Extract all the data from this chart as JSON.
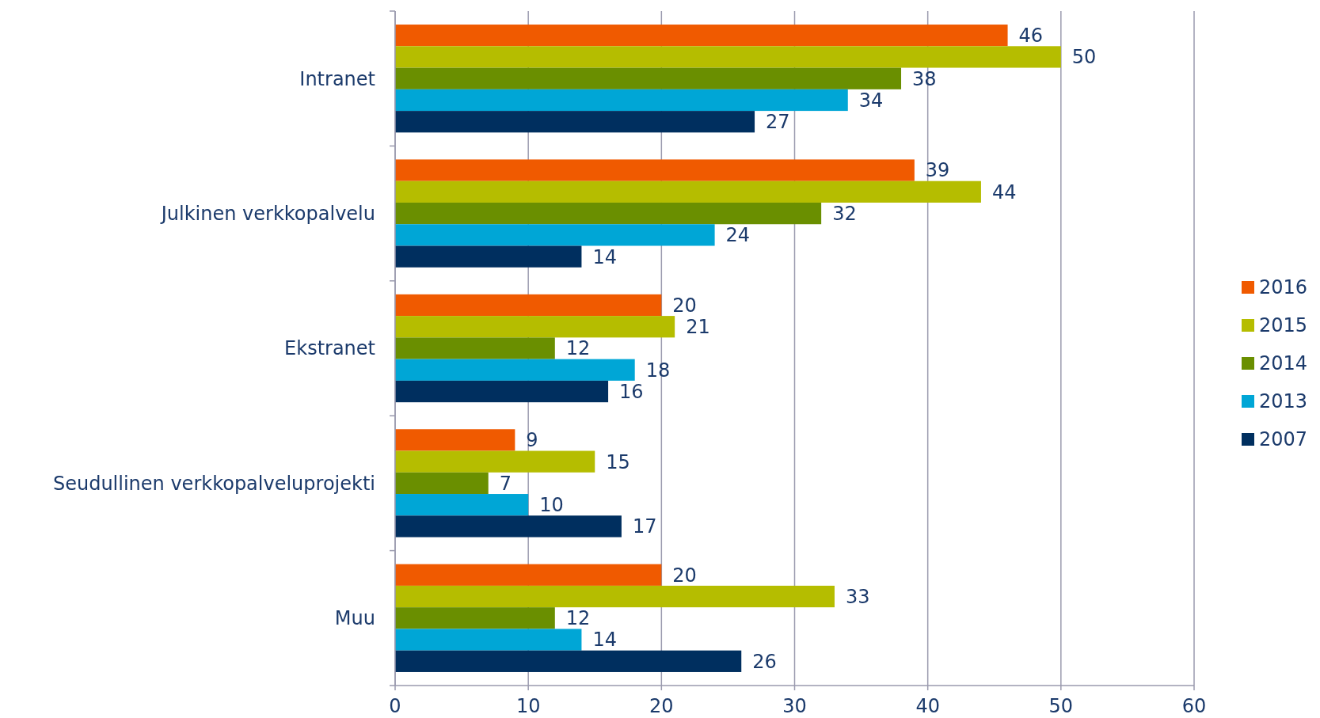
{
  "chart_data": {
    "type": "bar",
    "orientation": "horizontal",
    "categories": [
      "Intranet",
      "Julkinen verkkopalvelu",
      "Ekstranet",
      "Seudullinen verkkopalveluprojekti",
      "Muu"
    ],
    "series": [
      {
        "name": "2016",
        "color": "#f05a00",
        "values": [
          46,
          39,
          20,
          9,
          20
        ]
      },
      {
        "name": "2015",
        "color": "#b5bd00",
        "values": [
          50,
          44,
          21,
          15,
          33
        ]
      },
      {
        "name": "2014",
        "color": "#6a8f00",
        "values": [
          38,
          32,
          12,
          7,
          12
        ]
      },
      {
        "name": "2013",
        "color": "#00a6d6",
        "values": [
          34,
          24,
          18,
          10,
          14
        ]
      },
      {
        "name": "2007",
        "color": "#002f5f",
        "values": [
          27,
          14,
          16,
          17,
          26
        ]
      }
    ],
    "xlim": [
      0,
      60
    ],
    "xticks": [
      0,
      10,
      20,
      30,
      40,
      50,
      60
    ],
    "grid": "x",
    "legend": "right",
    "data_labels": true
  }
}
